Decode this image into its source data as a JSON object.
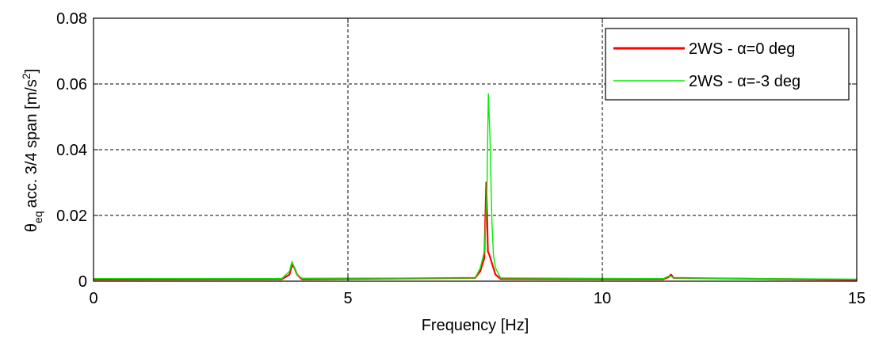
{
  "chart_data": {
    "type": "line",
    "xlabel": "Frequency [Hz]",
    "ylabel_main": "acc. 3/4 span [m/s",
    "ylabel_theta": "θ",
    "ylabel_sub": "eq",
    "ylabel_sup": "2",
    "ylabel_close": "]",
    "xlim": [
      0,
      15
    ],
    "ylim": [
      0,
      0.08
    ],
    "xticks": [
      0,
      5,
      10,
      15
    ],
    "yticks": [
      0,
      0.02,
      0.04,
      0.06,
      0.08
    ],
    "xtick_labels": [
      "0",
      "5",
      "10",
      "15"
    ],
    "ytick_labels": [
      "0",
      "0.02",
      "0.04",
      "0.06",
      "0.08"
    ],
    "grid": true,
    "legend_position": "top-right",
    "series": [
      {
        "name": "2WS - α=0 deg",
        "color": "#ff0000",
        "x": [
          0,
          3.7,
          3.85,
          3.9,
          3.95,
          4.0,
          4.1,
          7.5,
          7.6,
          7.68,
          7.72,
          7.75,
          7.78,
          7.82,
          7.86,
          7.9,
          8.0,
          11.2,
          11.3,
          11.35,
          11.4,
          15
        ],
        "y": [
          0.0005,
          0.0006,
          0.002,
          0.005,
          0.004,
          0.002,
          0.0006,
          0.001,
          0.003,
          0.007,
          0.03,
          0.009,
          0.008,
          0.006,
          0.004,
          0.002,
          0.0007,
          0.0006,
          0.0012,
          0.002,
          0.001,
          0.0004
        ]
      },
      {
        "name": "2WS - α=-3 deg",
        "color": "#00ee00",
        "x": [
          0,
          3.7,
          3.85,
          3.9,
          3.95,
          4.0,
          4.1,
          7.5,
          7.6,
          7.68,
          7.73,
          7.76,
          7.79,
          7.83,
          7.86,
          7.9,
          8.0,
          11.2,
          11.3,
          11.35,
          11.4,
          15
        ],
        "y": [
          0.0008,
          0.0008,
          0.003,
          0.006,
          0.004,
          0.002,
          0.0009,
          0.001,
          0.004,
          0.009,
          0.026,
          0.057,
          0.045,
          0.018,
          0.008,
          0.004,
          0.001,
          0.0008,
          0.0015,
          0.0015,
          0.001,
          0.0006
        ]
      }
    ]
  }
}
